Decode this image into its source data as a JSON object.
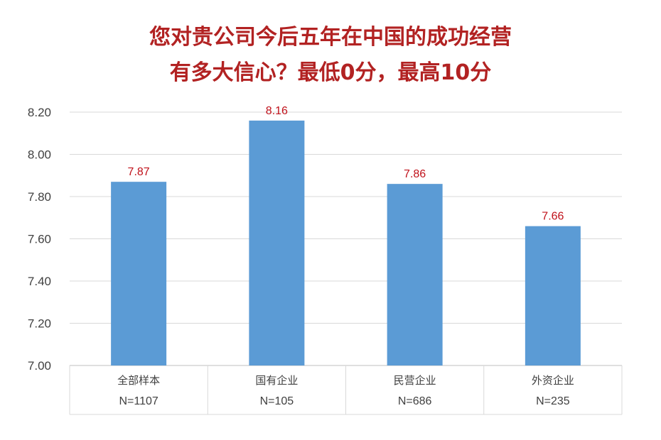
{
  "chart_data": {
    "type": "bar",
    "title_lines": [
      "您对贵公司今后五年在中国的成功经营",
      "有多大信心？最低0分，最高10分"
    ],
    "categories": [
      "全部样本",
      "国有企业",
      "民营企业",
      "外资企业"
    ],
    "sample_sizes": [
      "N=1107",
      "N=105",
      "N=686",
      "N=235"
    ],
    "values": [
      7.87,
      8.16,
      7.86,
      7.66
    ],
    "data_labels": [
      "7.87",
      "8.16",
      "7.86",
      "7.66"
    ],
    "ylim": [
      7.0,
      8.2
    ],
    "yticks": [
      "7.00",
      "7.20",
      "7.40",
      "7.60",
      "7.80",
      "8.00",
      "8.20"
    ],
    "grid": true,
    "colors": {
      "bar": "#5b9bd5",
      "title": "#b22222",
      "data_label": "#c0111a",
      "grid": "#d9d9d9"
    }
  }
}
